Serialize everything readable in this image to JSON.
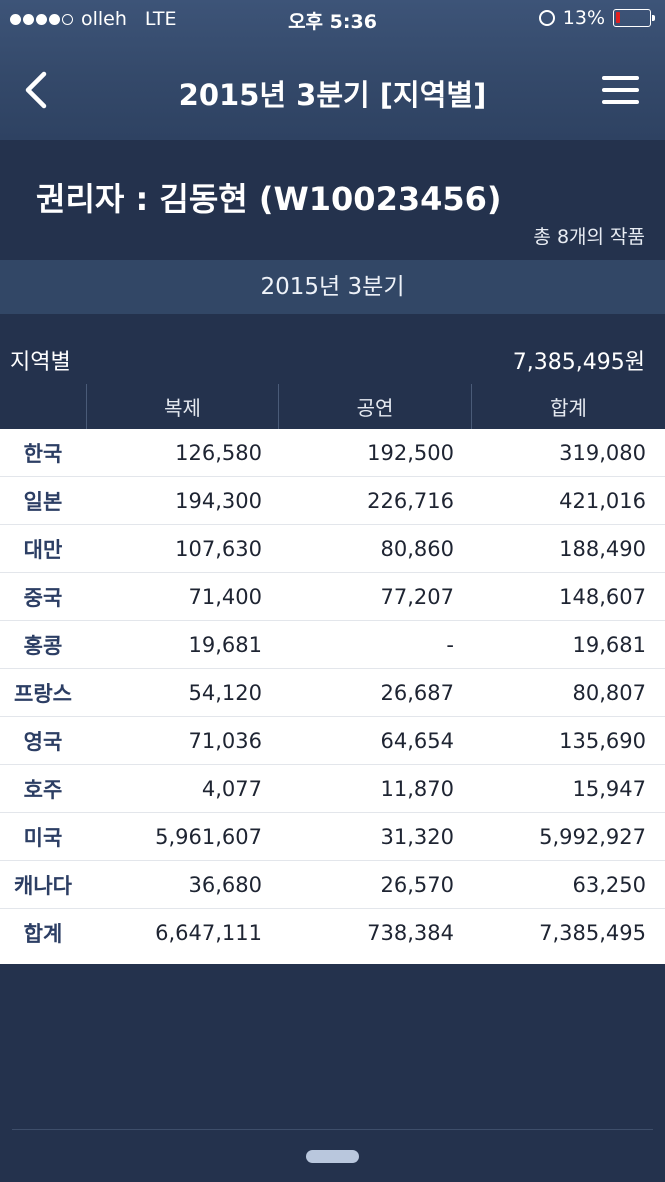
{
  "status_bar": {
    "carrier": "olleh",
    "network": "LTE",
    "time": "오후 5:36",
    "battery": "13%",
    "battery_level": 0.13,
    "signal_bars": 4
  },
  "nav": {
    "title": "2015년 3분기 [지역별]",
    "back_icon": "chevron-left-icon",
    "menu_icon": "hamburger-menu-icon"
  },
  "owner": {
    "name": "권리자 : 김동현 (W10023456)",
    "work_count": "총 8개의 작품"
  },
  "quarter_label": "2015년 3분기",
  "summary": {
    "label": "지역별",
    "total": "7,385,495원"
  },
  "table": {
    "headers": [
      "",
      "복제",
      "공연",
      "합계"
    ],
    "rows": [
      {
        "region": "한국",
        "copy": "126,580",
        "perf": "192,500",
        "sum": "319,080"
      },
      {
        "region": "일본",
        "copy": "194,300",
        "perf": "226,716",
        "sum": "421,016"
      },
      {
        "region": "대만",
        "copy": "107,630",
        "perf": "80,860",
        "sum": "188,490"
      },
      {
        "region": "중국",
        "copy": "71,400",
        "perf": "77,207",
        "sum": "148,607"
      },
      {
        "region": "홍콩",
        "copy": "19,681",
        "perf": "-",
        "sum": "19,681"
      },
      {
        "region": "프랑스",
        "copy": "54,120",
        "perf": "26,687",
        "sum": "80,807"
      },
      {
        "region": "영국",
        "copy": "71,036",
        "perf": "64,654",
        "sum": "135,690"
      },
      {
        "region": "호주",
        "copy": "4,077",
        "perf": "11,870",
        "sum": "15,947"
      },
      {
        "region": "미국",
        "copy": "5,961,607",
        "perf": "31,320",
        "sum": "5,992,927"
      },
      {
        "region": "캐나다",
        "copy": "36,680",
        "perf": "26,570",
        "sum": "63,250"
      },
      {
        "region": "합계",
        "copy": "6,647,111",
        "perf": "738,384",
        "sum": "7,385,495"
      }
    ]
  },
  "colors": {
    "background": "#24324d",
    "band": "#324766",
    "region_text": "#2c3e64",
    "battery_low": "#e02020"
  }
}
